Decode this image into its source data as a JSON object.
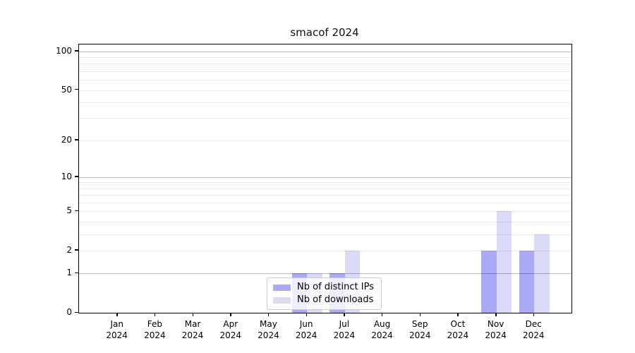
{
  "title": "smacof 2024",
  "colors": {
    "distinct_ips": "#a9a9f5",
    "downloads": "#dbdbf8",
    "major_grid": "#b9b9b9",
    "minor_grid": "#eaeaea",
    "axis": "#000000"
  },
  "legend": {
    "items": [
      {
        "label": "Nb of distinct IPs",
        "color": "#a9a9f5"
      },
      {
        "label": "Nb of downloads",
        "color": "#dbdbf8"
      }
    ]
  },
  "chart_data": {
    "type": "bar",
    "title": "smacof 2024",
    "xlabel": "",
    "ylabel": "",
    "grid": true,
    "legend_position": "inside bottom-center",
    "categories": [
      {
        "month": "Jan",
        "year": "2024"
      },
      {
        "month": "Feb",
        "year": "2024"
      },
      {
        "month": "Mar",
        "year": "2024"
      },
      {
        "month": "Apr",
        "year": "2024"
      },
      {
        "month": "May",
        "year": "2024"
      },
      {
        "month": "Jun",
        "year": "2024"
      },
      {
        "month": "Jul",
        "year": "2024"
      },
      {
        "month": "Aug",
        "year": "2024"
      },
      {
        "month": "Sep",
        "year": "2024"
      },
      {
        "month": "Oct",
        "year": "2024"
      },
      {
        "month": "Nov",
        "year": "2024"
      },
      {
        "month": "Dec",
        "year": "2024"
      }
    ],
    "series": [
      {
        "name": "Nb of distinct IPs",
        "color": "#a9a9f5",
        "values": [
          0,
          0,
          0,
          0,
          0,
          1,
          1,
          0,
          0,
          0,
          2,
          2
        ]
      },
      {
        "name": "Nb of downloads",
        "color": "#dbdbf8",
        "values": [
          0,
          0,
          0,
          0,
          0,
          1,
          2,
          0,
          0,
          0,
          5,
          3
        ]
      }
    ],
    "y_axis": {
      "scale": "log10(1+v)",
      "range_max": 113,
      "ticks": [
        {
          "value": 0,
          "label": "0"
        },
        {
          "value": 1,
          "label": "1"
        },
        {
          "value": 2,
          "label": "2"
        },
        {
          "value": 5,
          "label": "5"
        },
        {
          "value": 10,
          "label": "10"
        },
        {
          "value": 20,
          "label": "20"
        },
        {
          "value": 50,
          "label": "50"
        },
        {
          "value": 100,
          "label": "100"
        }
      ],
      "major_grid_values": [
        1,
        10,
        100
      ],
      "minor_grid_values": [
        2,
        3,
        4,
        5,
        6,
        7,
        8,
        9,
        20,
        30,
        40,
        50,
        60,
        70,
        80,
        90
      ]
    }
  }
}
